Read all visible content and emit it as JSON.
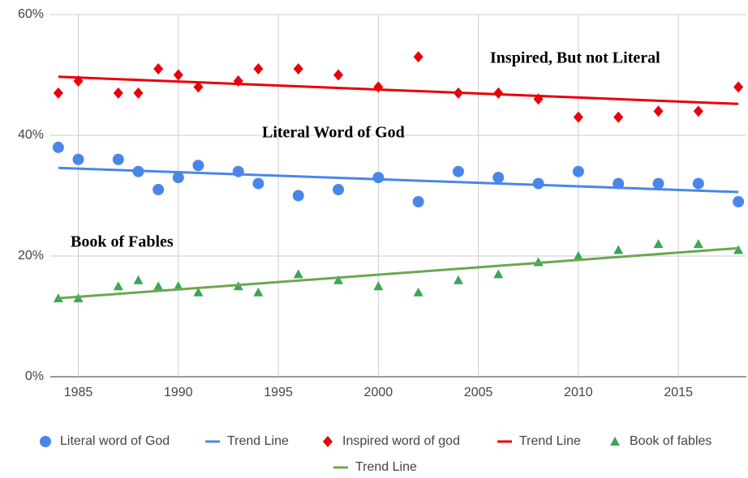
{
  "chart_data": {
    "type": "scatter",
    "xlim": [
      1983.6,
      2018.4
    ],
    "xticks": [
      1985,
      1990,
      1995,
      2000,
      2005,
      2010,
      2015
    ],
    "ylim": [
      0,
      60
    ],
    "yticks": [
      {
        "value": 0,
        "label": "0%"
      },
      {
        "value": 20,
        "label": "20%"
      },
      {
        "value": 40,
        "label": "40%"
      },
      {
        "value": 60,
        "label": "60%"
      }
    ],
    "grid": true,
    "annotations": [
      "Inspired, But not Literal",
      "Literal Word of God",
      "Book of Fables"
    ],
    "series": [
      {
        "name": "Literal word of God",
        "color": "#4a86e8",
        "marker": "circle",
        "x": [
          1984,
          1985,
          1987,
          1988,
          1989,
          1990,
          1991,
          1993,
          1994,
          1996,
          1998,
          2000,
          2002,
          2004,
          2006,
          2008,
          2010,
          2012,
          2014,
          2016,
          2018
        ],
        "values": [
          38,
          36,
          36,
          34,
          31,
          33,
          35,
          34,
          32,
          30,
          31,
          33,
          29,
          34,
          33,
          32,
          34,
          32,
          32,
          32,
          29
        ]
      },
      {
        "name": "Trend Line",
        "color": "#4a86e8",
        "marker": "line",
        "x": [
          1984,
          2018
        ],
        "values": [
          34.6,
          30.6
        ]
      },
      {
        "name": "Inspired word of god",
        "color": "#e8000b",
        "marker": "diamond",
        "x": [
          1984,
          1985,
          1987,
          1988,
          1989,
          1990,
          1991,
          1993,
          1994,
          1996,
          1998,
          2000,
          2002,
          2004,
          2006,
          2008,
          2010,
          2012,
          2014,
          2016,
          2018
        ],
        "values": [
          47,
          49,
          47,
          47,
          51,
          50,
          48,
          49,
          51,
          51,
          50,
          48,
          53,
          47,
          47,
          46,
          43,
          43,
          44,
          44,
          48
        ]
      },
      {
        "name": "Trend Line",
        "color": "#e8000b",
        "marker": "line",
        "x": [
          1984,
          2018
        ],
        "values": [
          49.7,
          45.2
        ]
      },
      {
        "name": "Book of fables",
        "color": "#3aa757",
        "marker": "triangle",
        "x": [
          1984,
          1985,
          1987,
          1988,
          1989,
          1990,
          1991,
          1993,
          1994,
          1996,
          1998,
          2000,
          2002,
          2004,
          2006,
          2008,
          2010,
          2012,
          2014,
          2016,
          2018
        ],
        "values": [
          13,
          13,
          15,
          16,
          15,
          15,
          14,
          15,
          14,
          17,
          16,
          15,
          14,
          16,
          17,
          19,
          20,
          21,
          22,
          22,
          21
        ]
      },
      {
        "name": "Trend Line",
        "color": "#6aa84f",
        "marker": "line",
        "x": [
          1984,
          2018
        ],
        "values": [
          13,
          21.3
        ]
      }
    ]
  }
}
